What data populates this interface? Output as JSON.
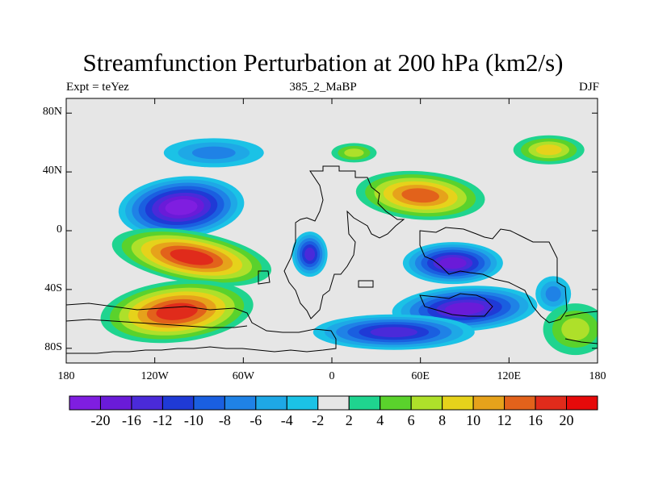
{
  "chart_data": {
    "type": "heatmap",
    "title": "Streamfunction Perturbation at 200 hPa (km2/s)",
    "subtitle_left": "Expt = teYez",
    "subtitle_center": "385_2_MaBP",
    "subtitle_right": "DJF",
    "xlabel": "",
    "ylabel": "",
    "xlim": [
      -180,
      180
    ],
    "ylim": [
      -90,
      90
    ],
    "x_ticks": [
      {
        "value": -180,
        "label": "180"
      },
      {
        "value": -120,
        "label": "120W"
      },
      {
        "value": -60,
        "label": "60W"
      },
      {
        "value": 0,
        "label": "0"
      },
      {
        "value": 60,
        "label": "60E"
      },
      {
        "value": 120,
        "label": "120E"
      },
      {
        "value": 180,
        "label": "180"
      }
    ],
    "y_ticks": [
      {
        "value": 80,
        "label": "80N"
      },
      {
        "value": 40,
        "label": "40N"
      },
      {
        "value": 0,
        "label": "0"
      },
      {
        "value": -40,
        "label": "40S"
      },
      {
        "value": -80,
        "label": "80S"
      }
    ],
    "colorbar": {
      "levels": [
        -20,
        -16,
        -12,
        -10,
        -8,
        -6,
        -4,
        -2,
        2,
        4,
        6,
        8,
        10,
        12,
        16,
        20
      ],
      "labels": [
        "-20",
        "-16",
        "-12",
        "-10",
        "-8",
        "-6",
        "-4",
        "-2",
        "2",
        "4",
        "6",
        "8",
        "10",
        "12",
        "16",
        "20"
      ],
      "colors": [
        "#7f1ee0",
        "#6a1bd8",
        "#4a2ad9",
        "#1f3ad6",
        "#1a5fe0",
        "#1f82e6",
        "#1ea8e6",
        "#1bc2e6",
        "#e6e6e6",
        "#1fd48f",
        "#5ad22c",
        "#aee02a",
        "#e6d21b",
        "#e6a21b",
        "#e2621b",
        "#e02b1b",
        "#e60a0a"
      ]
    },
    "anomaly_centers": [
      {
        "lon": -102,
        "lat": 16,
        "value": -20
      },
      {
        "lon": -80,
        "lat": 53,
        "value": -6
      },
      {
        "lon": -15,
        "lat": -16,
        "value": -12
      },
      {
        "lon": 82,
        "lat": -22,
        "value": -16
      },
      {
        "lon": 90,
        "lat": -53,
        "value": -16
      },
      {
        "lon": 42,
        "lat": -69,
        "value": -12
      },
      {
        "lon": 150,
        "lat": -43,
        "value": -6
      },
      {
        "lon": -95,
        "lat": -18,
        "value": 16
      },
      {
        "lon": -105,
        "lat": -55,
        "value": 16
      },
      {
        "lon": 60,
        "lat": 24,
        "value": 12
      },
      {
        "lon": 147,
        "lat": 55,
        "value": 8
      },
      {
        "lon": 15,
        "lat": 53,
        "value": 6
      },
      {
        "lon": 165,
        "lat": -67,
        "value": 6
      }
    ]
  }
}
